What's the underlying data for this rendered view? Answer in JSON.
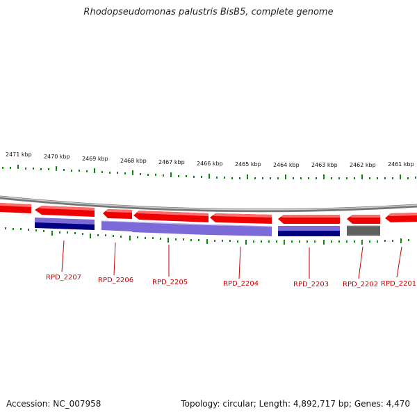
{
  "title": "Rhodopseudomonas palustris BisB5, complete genome",
  "scale_labels": [
    "2471 kbp",
    "2470 kbp",
    "2469 kbp",
    "2468 kbp",
    "2467 kbp",
    "2466 kbp",
    "2465 kbp",
    "2464 kbp",
    "2463 kbp",
    "2462 kbp",
    "2461 kbp"
  ],
  "gene_labels": [
    "RPD_2207",
    "RPD_2206",
    "RPD_2205",
    "RPD_2204",
    "RPD_2203",
    "RPD_2202",
    "RPD_2201"
  ],
  "footer": {
    "accession": "Accession: NC_007958",
    "summary": "Topology: circular; Length: 4,892,717 bp; Genes: 4,470"
  },
  "colors": {
    "gene_red": "#ff0000",
    "blast_light": "#7060d0",
    "blast_dark": "#000080",
    "blast_gray": "#606060",
    "tick_green": "#008000",
    "backbone": "#888888"
  }
}
